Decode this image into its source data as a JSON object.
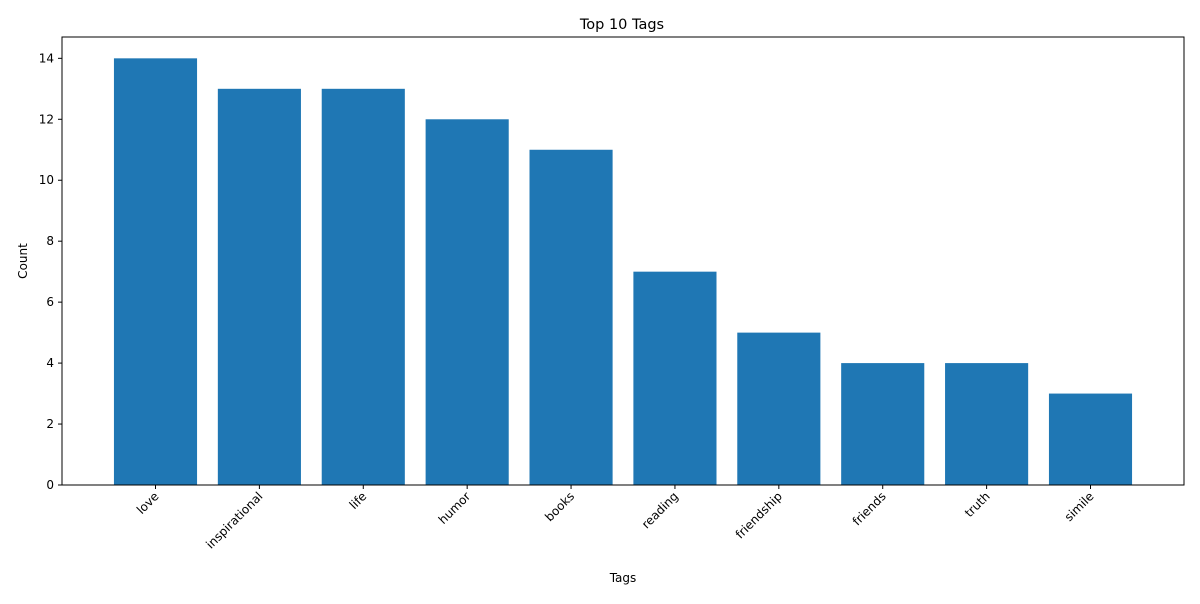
{
  "chart_data": {
    "type": "bar",
    "title": "Top 10 Tags",
    "xlabel": "Tags",
    "ylabel": "Count",
    "categories": [
      "love",
      "inspirational",
      "life",
      "humor",
      "books",
      "reading",
      "friendship",
      "friends",
      "truth",
      "simile"
    ],
    "values": [
      14,
      13,
      13,
      12,
      11,
      7,
      5,
      4,
      4,
      3
    ],
    "ylim": [
      0,
      14.7
    ],
    "yticks": [
      0,
      2,
      4,
      6,
      8,
      10,
      12,
      14
    ],
    "bar_color": "#1f77b4",
    "grid": false,
    "legend": false
  }
}
